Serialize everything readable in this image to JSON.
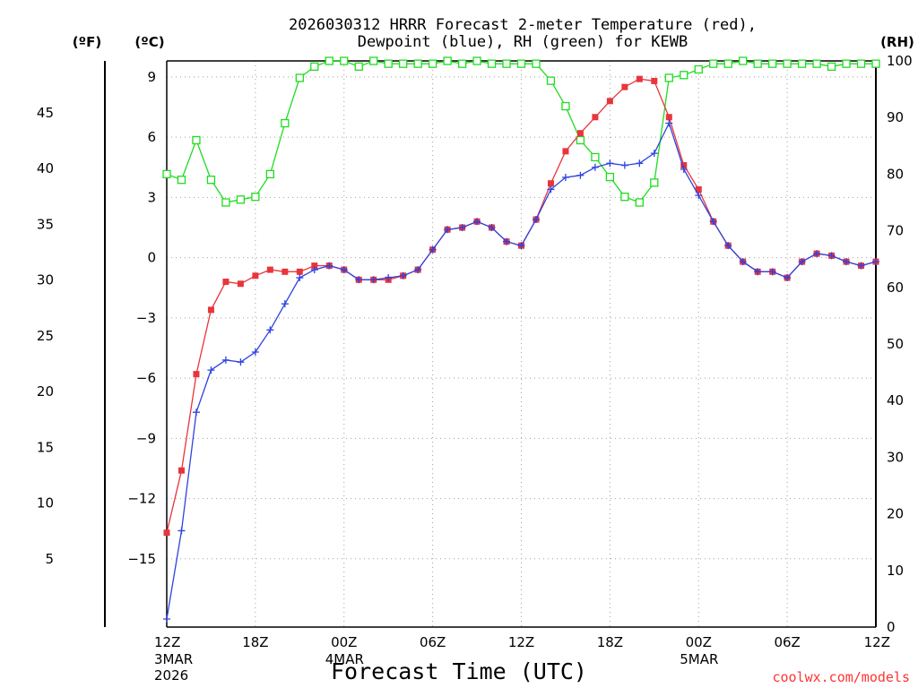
{
  "chart_data": {
    "type": "line",
    "title": "2026030312 HRRR Forecast 2-meter Temperature (red),",
    "subtitle": "Dewpoint (blue), RH (green) for KEWB",
    "xlabel": "Forecast Time (UTC)",
    "credit": "coolwx.com/models",
    "unit_labels": {
      "fahrenheit": "(ºF)",
      "celsius": "(ºC)",
      "rh": "(RH)"
    },
    "x_hours": [
      0,
      1,
      2,
      3,
      4,
      5,
      6,
      7,
      8,
      9,
      10,
      11,
      12,
      13,
      14,
      15,
      16,
      17,
      18,
      19,
      20,
      21,
      22,
      23,
      24,
      25,
      26,
      27,
      28,
      29,
      30,
      31,
      32,
      33,
      34,
      35,
      36,
      37,
      38,
      39,
      40,
      41,
      42,
      43,
      44,
      45,
      46,
      47,
      48
    ],
    "xlim": [
      0,
      48
    ],
    "x_ticks": [
      {
        "hour": 0,
        "label": "12Z",
        "sub1": "3MAR",
        "sub2": "2026"
      },
      {
        "hour": 6,
        "label": "18Z",
        "sub1": "",
        "sub2": ""
      },
      {
        "hour": 12,
        "label": "00Z",
        "sub1": "4MAR",
        "sub2": ""
      },
      {
        "hour": 18,
        "label": "06Z",
        "sub1": "",
        "sub2": ""
      },
      {
        "hour": 24,
        "label": "12Z",
        "sub1": "",
        "sub2": ""
      },
      {
        "hour": 30,
        "label": "18Z",
        "sub1": "",
        "sub2": ""
      },
      {
        "hour": 36,
        "label": "00Z",
        "sub1": "5MAR",
        "sub2": ""
      },
      {
        "hour": 42,
        "label": "06Z",
        "sub1": "",
        "sub2": ""
      },
      {
        "hour": 48,
        "label": "12Z",
        "sub1": "",
        "sub2": ""
      }
    ],
    "celsius_axis": {
      "ylim": [
        -18.4,
        9.8
      ],
      "ticks": [
        "9",
        "6",
        "3",
        "0",
        "−3",
        "−6",
        "−9",
        "−12",
        "−15"
      ],
      "tick_values": [
        9,
        6,
        3,
        0,
        -3,
        -6,
        -9,
        -12,
        -15
      ]
    },
    "fahrenheit_axis": {
      "ticks": [
        "45",
        "40",
        "35",
        "30",
        "25",
        "20",
        "15",
        "10",
        "5"
      ],
      "tick_values": [
        45,
        40,
        35,
        30,
        25,
        20,
        15,
        10,
        5
      ]
    },
    "rh_axis": {
      "ylim": [
        0,
        100
      ],
      "ticks": [
        "100",
        "90",
        "80",
        "70",
        "60",
        "50",
        "40",
        "30",
        "20",
        "10",
        "0"
      ],
      "tick_values": [
        100,
        90,
        80,
        70,
        60,
        50,
        40,
        30,
        20,
        10,
        0
      ]
    },
    "series": [
      {
        "name": "Temperature",
        "units": "°C",
        "axis": "celsius",
        "color": "#e8353c",
        "marker": "filled-square",
        "values": [
          -13.7,
          -10.6,
          -5.8,
          -2.6,
          -1.2,
          -1.3,
          -0.9,
          -0.6,
          -0.7,
          -0.7,
          -0.4,
          -0.4,
          -0.6,
          -1.1,
          -1.1,
          -1.1,
          -0.9,
          -0.6,
          0.4,
          1.4,
          1.5,
          1.8,
          1.5,
          0.8,
          0.6,
          1.9,
          3.7,
          5.3,
          6.2,
          7.0,
          7.8,
          8.5,
          8.9,
          8.8,
          7.0,
          4.6,
          3.4,
          1.8,
          0.6,
          -0.2,
          -0.7,
          -0.7,
          -1.0,
          -0.2,
          0.2,
          0.1,
          -0.2,
          -0.4,
          -0.2
        ]
      },
      {
        "name": "Dewpoint",
        "units": "°C",
        "axis": "celsius",
        "color": "#2f43e0",
        "marker": "plus",
        "values": [
          -18.0,
          -13.6,
          -7.7,
          -5.6,
          -5.1,
          -5.2,
          -4.7,
          -3.6,
          -2.3,
          -1.0,
          -0.6,
          -0.4,
          -0.6,
          -1.1,
          -1.1,
          -1.0,
          -0.9,
          -0.6,
          0.4,
          1.4,
          1.5,
          1.8,
          1.5,
          0.8,
          0.6,
          1.9,
          3.4,
          4.0,
          4.1,
          4.5,
          4.7,
          4.6,
          4.7,
          5.2,
          6.7,
          4.4,
          3.1,
          1.8,
          0.6,
          -0.2,
          -0.7,
          -0.7,
          -1.0,
          -0.2,
          0.2,
          0.1,
          -0.2,
          -0.4,
          -0.2
        ]
      },
      {
        "name": "RH",
        "units": "%",
        "axis": "rh",
        "color": "#1fdc1f",
        "marker": "open-square",
        "values": [
          80,
          79,
          86,
          79,
          75,
          75.5,
          76,
          80,
          89,
          97,
          99,
          100,
          100,
          99,
          100,
          99.5,
          99.5,
          99.5,
          99.5,
          100,
          99.5,
          100,
          99.5,
          99.5,
          99.5,
          99.5,
          96.5,
          92,
          86,
          83,
          79.5,
          76,
          75,
          78.5,
          97,
          97.5,
          98.5,
          99.5,
          99.5,
          100,
          99.5,
          99.5,
          99.5,
          99.5,
          99.5,
          99,
          99.5,
          99.5,
          99.5
        ]
      }
    ]
  }
}
